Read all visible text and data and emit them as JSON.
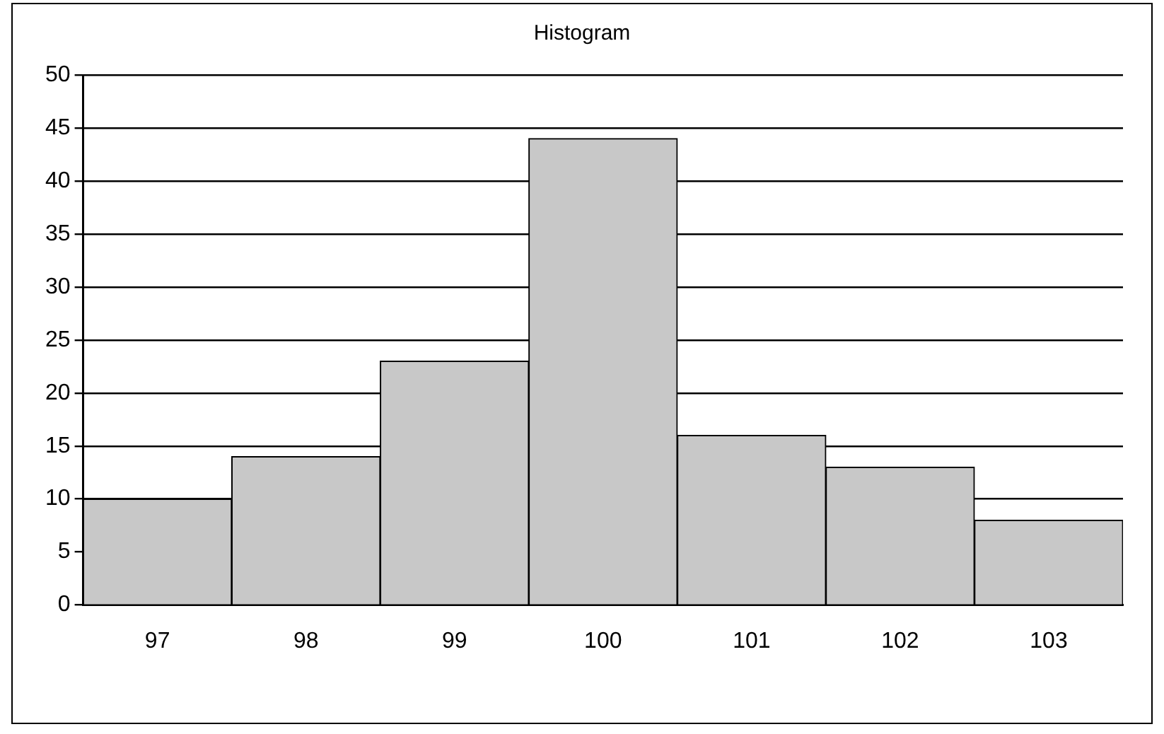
{
  "chart_data": {
    "type": "bar",
    "title": "Histogram",
    "categories": [
      "97",
      "98",
      "99",
      "100",
      "101",
      "102",
      "103"
    ],
    "values": [
      10,
      14,
      23,
      44,
      16,
      13,
      8
    ],
    "color": "#c8c8c8",
    "ylim": [
      0,
      50
    ],
    "yticks": [
      0,
      5,
      10,
      15,
      20,
      25,
      30,
      35,
      40,
      45,
      50
    ],
    "grid": "y"
  }
}
